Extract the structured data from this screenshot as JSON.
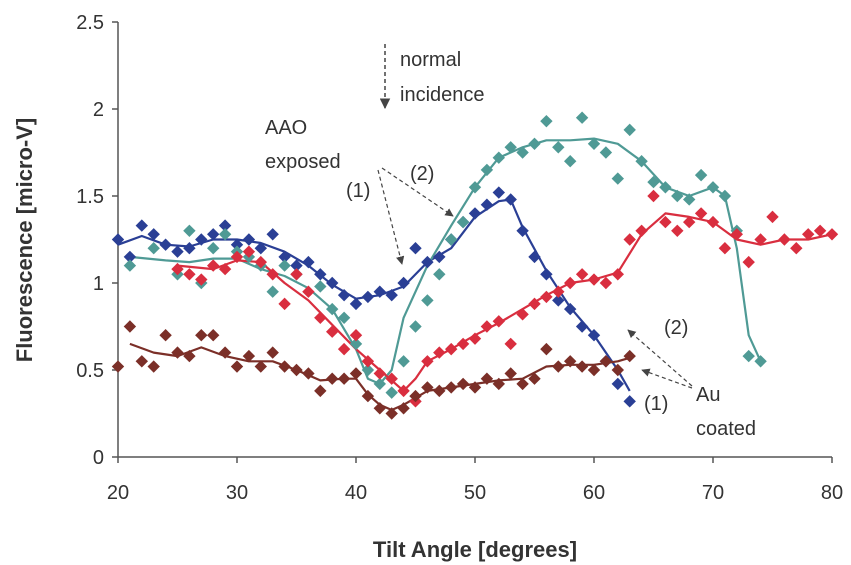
{
  "chart_data": {
    "type": "scatter",
    "title": "",
    "xlabel": "Tilt Angle [degrees]",
    "ylabel": "Fluorescence [micro-V]",
    "xlim": [
      20,
      80
    ],
    "ylim": [
      0,
      2.5
    ],
    "xticks": [
      20,
      30,
      40,
      50,
      60,
      70,
      80
    ],
    "yticks": [
      0,
      0.5,
      1,
      1.5,
      2,
      2.5
    ],
    "xtick_labels": [
      "20",
      "30",
      "40",
      "50",
      "60",
      "70",
      "80"
    ],
    "ytick_labels": [
      "0",
      "0.5",
      "1",
      "1.5",
      "2",
      "2.5"
    ],
    "grid": false,
    "legend": "none",
    "series": [
      {
        "group": "AAO exposed",
        "label": "(1)",
        "color": "#2a3f95",
        "points": [
          [
            20,
            1.25
          ],
          [
            21,
            1.15
          ],
          [
            22,
            1.33
          ],
          [
            23,
            1.28
          ],
          [
            24,
            1.22
          ],
          [
            25,
            1.18
          ],
          [
            26,
            1.2
          ],
          [
            27,
            1.25
          ],
          [
            28,
            1.28
          ],
          [
            29,
            1.33
          ],
          [
            30,
            1.22
          ],
          [
            31,
            1.25
          ],
          [
            32,
            1.2
          ],
          [
            33,
            1.28
          ],
          [
            34,
            1.15
          ],
          [
            35,
            1.1
          ],
          [
            36,
            1.12
          ],
          [
            37,
            1.05
          ],
          [
            38,
            1.0
          ],
          [
            39,
            0.93
          ],
          [
            40,
            0.88
          ],
          [
            41,
            0.92
          ],
          [
            42,
            0.95
          ],
          [
            43,
            0.93
          ],
          [
            44,
            1.0
          ],
          [
            45,
            1.2
          ],
          [
            46,
            1.12
          ],
          [
            47,
            1.15
          ],
          [
            48,
            1.25
          ],
          [
            49,
            1.35
          ],
          [
            50,
            1.4
          ],
          [
            51,
            1.45
          ],
          [
            52,
            1.52
          ],
          [
            53,
            1.48
          ],
          [
            54,
            1.3
          ],
          [
            55,
            1.15
          ],
          [
            56,
            1.05
          ],
          [
            57,
            0.9
          ],
          [
            58,
            0.85
          ],
          [
            59,
            0.75
          ],
          [
            60,
            0.7
          ],
          [
            61,
            0.55
          ],
          [
            62,
            0.42
          ],
          [
            63,
            0.32
          ]
        ],
        "fit": [
          [
            20,
            1.22
          ],
          [
            22,
            1.27
          ],
          [
            24,
            1.22
          ],
          [
            26,
            1.21
          ],
          [
            28,
            1.25
          ],
          [
            30,
            1.25
          ],
          [
            32,
            1.23
          ],
          [
            34,
            1.18
          ],
          [
            36,
            1.1
          ],
          [
            38,
            0.99
          ],
          [
            40,
            0.91
          ],
          [
            42,
            0.93
          ],
          [
            44,
            0.98
          ],
          [
            46,
            1.12
          ],
          [
            48,
            1.2
          ],
          [
            50,
            1.38
          ],
          [
            52,
            1.47
          ],
          [
            53,
            1.48
          ],
          [
            54,
            1.32
          ],
          [
            56,
            1.07
          ],
          [
            58,
            0.86
          ],
          [
            60,
            0.7
          ],
          [
            62,
            0.5
          ],
          [
            63,
            0.38
          ]
        ]
      },
      {
        "group": "AAO exposed",
        "label": "(2)",
        "color": "#4f9a95",
        "points": [
          [
            21,
            1.1
          ],
          [
            23,
            1.2
          ],
          [
            25,
            1.05
          ],
          [
            26,
            1.3
          ],
          [
            27,
            1.0
          ],
          [
            28,
            1.2
          ],
          [
            29,
            1.28
          ],
          [
            30,
            1.18
          ],
          [
            31,
            1.15
          ],
          [
            32,
            1.1
          ],
          [
            33,
            0.95
          ],
          [
            34,
            1.1
          ],
          [
            35,
            1.05
          ],
          [
            37,
            0.98
          ],
          [
            38,
            0.85
          ],
          [
            39,
            0.8
          ],
          [
            40,
            0.65
          ],
          [
            41,
            0.5
          ],
          [
            42,
            0.42
          ],
          [
            43,
            0.37
          ],
          [
            44,
            0.55
          ],
          [
            45,
            0.75
          ],
          [
            46,
            0.9
          ],
          [
            47,
            1.05
          ],
          [
            48,
            1.25
          ],
          [
            49,
            1.35
          ],
          [
            50,
            1.55
          ],
          [
            51,
            1.65
          ],
          [
            52,
            1.72
          ],
          [
            53,
            1.78
          ],
          [
            54,
            1.75
          ],
          [
            55,
            1.8
          ],
          [
            56,
            1.93
          ],
          [
            57,
            1.78
          ],
          [
            58,
            1.7
          ],
          [
            59,
            1.95
          ],
          [
            60,
            1.8
          ],
          [
            61,
            1.75
          ],
          [
            62,
            1.6
          ],
          [
            63,
            1.88
          ],
          [
            64,
            1.7
          ],
          [
            65,
            1.58
          ],
          [
            66,
            1.55
          ],
          [
            67,
            1.5
          ],
          [
            68,
            1.48
          ],
          [
            69,
            1.62
          ],
          [
            70,
            1.55
          ],
          [
            71,
            1.5
          ],
          [
            72,
            1.3
          ],
          [
            73,
            0.58
          ],
          [
            74,
            0.55
          ]
        ],
        "fit": [
          [
            21,
            1.15
          ],
          [
            24,
            1.13
          ],
          [
            26,
            1.12
          ],
          [
            28,
            1.14
          ],
          [
            30,
            1.14
          ],
          [
            32,
            1.08
          ],
          [
            34,
            1.04
          ],
          [
            36,
            0.97
          ],
          [
            38,
            0.85
          ],
          [
            40,
            0.62
          ],
          [
            41,
            0.45
          ],
          [
            42,
            0.42
          ],
          [
            43,
            0.5
          ],
          [
            44,
            0.8
          ],
          [
            46,
            1.1
          ],
          [
            48,
            1.33
          ],
          [
            50,
            1.55
          ],
          [
            52,
            1.72
          ],
          [
            54,
            1.78
          ],
          [
            56,
            1.82
          ],
          [
            58,
            1.82
          ],
          [
            60,
            1.83
          ],
          [
            62,
            1.8
          ],
          [
            64,
            1.7
          ],
          [
            66,
            1.55
          ],
          [
            68,
            1.5
          ],
          [
            70,
            1.55
          ],
          [
            71,
            1.5
          ],
          [
            72,
            1.2
          ],
          [
            73,
            0.7
          ],
          [
            74,
            0.55
          ]
        ]
      },
      {
        "group": "Au coated",
        "label": "(2)",
        "color": "#d92e3f",
        "points": [
          [
            25,
            1.08
          ],
          [
            26,
            1.05
          ],
          [
            27,
            1.02
          ],
          [
            28,
            1.1
          ],
          [
            29,
            1.08
          ],
          [
            30,
            1.15
          ],
          [
            31,
            1.18
          ],
          [
            32,
            1.12
          ],
          [
            33,
            1.05
          ],
          [
            34,
            0.88
          ],
          [
            35,
            1.05
          ],
          [
            36,
            0.95
          ],
          [
            37,
            0.8
          ],
          [
            38,
            0.72
          ],
          [
            39,
            0.62
          ],
          [
            40,
            0.7
          ],
          [
            41,
            0.55
          ],
          [
            42,
            0.48
          ],
          [
            43,
            0.45
          ],
          [
            44,
            0.38
          ],
          [
            45,
            0.32
          ],
          [
            46,
            0.55
          ],
          [
            47,
            0.6
          ],
          [
            48,
            0.62
          ],
          [
            49,
            0.65
          ],
          [
            50,
            0.68
          ],
          [
            51,
            0.75
          ],
          [
            52,
            0.78
          ],
          [
            53,
            0.65
          ],
          [
            54,
            0.82
          ],
          [
            55,
            0.88
          ],
          [
            56,
            0.92
          ],
          [
            57,
            0.95
          ],
          [
            58,
            1.0
          ],
          [
            59,
            1.05
          ],
          [
            60,
            1.02
          ],
          [
            61,
            1.0
          ],
          [
            62,
            1.05
          ],
          [
            63,
            1.25
          ],
          [
            64,
            1.3
          ],
          [
            65,
            1.5
          ],
          [
            66,
            1.35
          ],
          [
            67,
            1.3
          ],
          [
            68,
            1.35
          ],
          [
            69,
            1.4
          ],
          [
            70,
            1.35
          ],
          [
            71,
            1.2
          ],
          [
            72,
            1.28
          ],
          [
            73,
            1.12
          ],
          [
            74,
            1.25
          ],
          [
            75,
            1.38
          ],
          [
            76,
            1.25
          ],
          [
            77,
            1.2
          ],
          [
            78,
            1.28
          ],
          [
            79,
            1.3
          ],
          [
            80,
            1.28
          ]
        ],
        "fit": [
          [
            25,
            1.1
          ],
          [
            28,
            1.08
          ],
          [
            30,
            1.13
          ],
          [
            32,
            1.12
          ],
          [
            34,
            1.0
          ],
          [
            36,
            0.9
          ],
          [
            38,
            0.76
          ],
          [
            40,
            0.62
          ],
          [
            42,
            0.5
          ],
          [
            43,
            0.44
          ],
          [
            44,
            0.38
          ],
          [
            45,
            0.45
          ],
          [
            46,
            0.55
          ],
          [
            48,
            0.62
          ],
          [
            50,
            0.7
          ],
          [
            52,
            0.77
          ],
          [
            54,
            0.85
          ],
          [
            56,
            0.93
          ],
          [
            58,
            1.0
          ],
          [
            60,
            1.02
          ],
          [
            62,
            1.06
          ],
          [
            64,
            1.28
          ],
          [
            66,
            1.4
          ],
          [
            68,
            1.38
          ],
          [
            70,
            1.35
          ],
          [
            72,
            1.25
          ],
          [
            74,
            1.22
          ],
          [
            76,
            1.25
          ],
          [
            78,
            1.25
          ],
          [
            80,
            1.28
          ]
        ]
      },
      {
        "group": "Au coated",
        "label": "(1)",
        "color": "#7b2f28",
        "points": [
          [
            20,
            0.52
          ],
          [
            21,
            0.75
          ],
          [
            22,
            0.55
          ],
          [
            23,
            0.52
          ],
          [
            24,
            0.7
          ],
          [
            25,
            0.6
          ],
          [
            26,
            0.58
          ],
          [
            27,
            0.7
          ],
          [
            28,
            0.7
          ],
          [
            29,
            0.6
          ],
          [
            30,
            0.52
          ],
          [
            31,
            0.58
          ],
          [
            32,
            0.52
          ],
          [
            33,
            0.6
          ],
          [
            34,
            0.52
          ],
          [
            35,
            0.5
          ],
          [
            36,
            0.48
          ],
          [
            37,
            0.38
          ],
          [
            38,
            0.45
          ],
          [
            39,
            0.45
          ],
          [
            40,
            0.48
          ],
          [
            41,
            0.35
          ],
          [
            42,
            0.28
          ],
          [
            43,
            0.25
          ],
          [
            44,
            0.28
          ],
          [
            45,
            0.35
          ],
          [
            46,
            0.4
          ],
          [
            47,
            0.38
          ],
          [
            48,
            0.4
          ],
          [
            49,
            0.42
          ],
          [
            50,
            0.4
          ],
          [
            51,
            0.45
          ],
          [
            52,
            0.42
          ],
          [
            53,
            0.48
          ],
          [
            54,
            0.42
          ],
          [
            55,
            0.45
          ],
          [
            56,
            0.62
          ],
          [
            57,
            0.52
          ],
          [
            58,
            0.55
          ],
          [
            59,
            0.52
          ],
          [
            60,
            0.5
          ],
          [
            61,
            0.55
          ],
          [
            62,
            0.5
          ],
          [
            63,
            0.58
          ]
        ],
        "fit": [
          [
            21,
            0.65
          ],
          [
            23,
            0.6
          ],
          [
            25,
            0.58
          ],
          [
            27,
            0.63
          ],
          [
            29,
            0.58
          ],
          [
            31,
            0.55
          ],
          [
            33,
            0.55
          ],
          [
            35,
            0.5
          ],
          [
            37,
            0.44
          ],
          [
            39,
            0.45
          ],
          [
            40,
            0.45
          ],
          [
            41,
            0.36
          ],
          [
            42,
            0.3
          ],
          [
            43,
            0.27
          ],
          [
            44,
            0.3
          ],
          [
            46,
            0.38
          ],
          [
            48,
            0.4
          ],
          [
            50,
            0.42
          ],
          [
            52,
            0.44
          ],
          [
            54,
            0.45
          ],
          [
            56,
            0.52
          ],
          [
            58,
            0.53
          ],
          [
            60,
            0.53
          ],
          [
            62,
            0.55
          ],
          [
            63,
            0.57
          ]
        ]
      }
    ]
  },
  "annotations": {
    "normal_incidence_line1": "normal",
    "normal_incidence_line2": "incidence",
    "aao_line1": "AAO",
    "aao_line2": "exposed",
    "aao_label_1": "(1)",
    "aao_label_2": "(2)",
    "au_label_2": "(2)",
    "au_label_1": "(1)",
    "au_line1": "Au",
    "au_line2": "coated"
  }
}
